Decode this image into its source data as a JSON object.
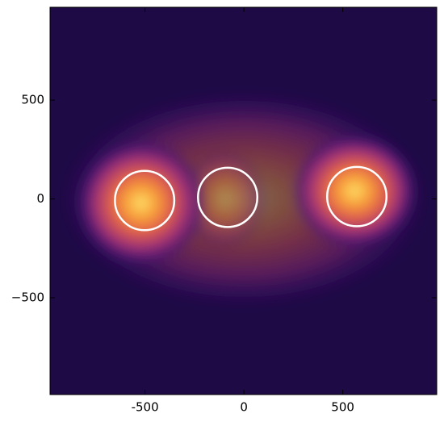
{
  "chart_data": {
    "type": "contour",
    "xlim": [
      -980,
      975
    ],
    "ylim": [
      -990,
      970
    ],
    "xticks": [
      -500,
      0,
      500
    ],
    "yticks": [
      500,
      0,
      {
        "value": -500,
        "label": "−500"
      }
    ],
    "background": "#1e0a45",
    "density": [
      {
        "x": 0,
        "y": 0,
        "rx": 950,
        "ry": 560,
        "intensity": 0.45
      },
      {
        "x": -100,
        "y": 0,
        "rx": 220,
        "ry": 260,
        "intensity": 0.35
      },
      {
        "x": -520,
        "y": -20,
        "rx": 340,
        "ry": 330,
        "intensity": 1
      },
      {
        "x": 560,
        "y": 40,
        "rx": 330,
        "ry": 300,
        "intensity": 1
      }
    ],
    "circles": [
      {
        "x": -502,
        "y": -8,
        "r": 150
      },
      {
        "x": -82,
        "y": 8,
        "r": 150
      },
      {
        "x": 571,
        "y": 12,
        "r": 150
      }
    ],
    "circle_color": "#ffffff"
  }
}
